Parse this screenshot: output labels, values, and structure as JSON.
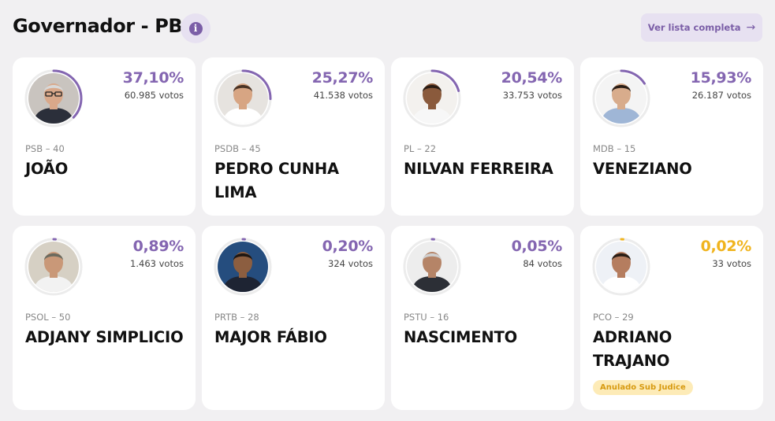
{
  "header": {
    "title": "Governador - PB",
    "list_label": "Ver lista completa",
    "info_glyph": "i",
    "arrow_glyph": "→"
  },
  "colors": {
    "accent": "#8466b1",
    "warning": "#f0b41e",
    "badge_bg": "#fdebb7"
  },
  "candidates": [
    {
      "name": "JOÃO",
      "party": "PSB – 40",
      "percent": "37,10%",
      "votes": "60.985 votos",
      "share": 0.371,
      "status": "normal"
    },
    {
      "name": "PEDRO CUNHA LIMA",
      "party": "PSDB – 45",
      "percent": "25,27%",
      "votes": "41.538 votos",
      "share": 0.2527,
      "status": "normal"
    },
    {
      "name": "NILVAN FERREIRA",
      "party": "PL – 22",
      "percent": "20,54%",
      "votes": "33.753 votos",
      "share": 0.2054,
      "status": "normal"
    },
    {
      "name": "VENEZIANO",
      "party": "MDB – 15",
      "percent": "15,93%",
      "votes": "26.187 votos",
      "share": 0.1593,
      "status": "normal"
    },
    {
      "name": "ADJANY SIMPLICIO",
      "party": "PSOL – 50",
      "percent": "0,89%",
      "votes": "1.463 votos",
      "share": 0.0089,
      "status": "normal"
    },
    {
      "name": "MAJOR FÁBIO",
      "party": "PRTB – 28",
      "percent": "0,20%",
      "votes": "324 votos",
      "share": 0.002,
      "status": "normal"
    },
    {
      "name": "NASCIMENTO",
      "party": "PSTU – 16",
      "percent": "0,05%",
      "votes": "84 votos",
      "share": 0.0005,
      "status": "normal"
    },
    {
      "name": "ADRIANO TRAJANO",
      "party": "PCO – 29",
      "percent": "0,02%",
      "votes": "33 votos",
      "share": 0.0002,
      "status": "sub_judice",
      "badge": "Anulado Sub Judice"
    }
  ]
}
